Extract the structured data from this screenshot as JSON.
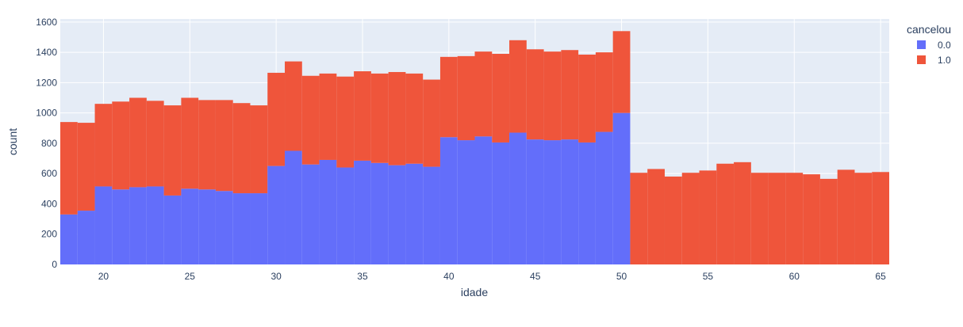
{
  "chart_data": {
    "type": "bar",
    "stacked": true,
    "x": [
      18,
      19,
      20,
      21,
      22,
      23,
      24,
      25,
      26,
      27,
      28,
      29,
      30,
      31,
      32,
      33,
      34,
      35,
      36,
      37,
      38,
      39,
      40,
      41,
      42,
      43,
      44,
      45,
      46,
      47,
      48,
      49,
      50,
      51,
      52,
      53,
      54,
      55,
      56,
      57,
      58,
      59,
      60,
      61,
      62,
      63,
      64,
      65
    ],
    "series": [
      {
        "name": "0.0",
        "color": "#636efa",
        "values": [
          330,
          355,
          515,
          495,
          510,
          515,
          455,
          500,
          495,
          485,
          470,
          470,
          650,
          750,
          660,
          690,
          640,
          685,
          670,
          655,
          665,
          645,
          840,
          820,
          845,
          805,
          870,
          825,
          820,
          825,
          805,
          875,
          1000,
          0,
          0,
          0,
          0,
          0,
          0,
          0,
          0,
          0,
          0,
          0,
          0,
          0,
          0,
          0
        ]
      },
      {
        "name": "1.0",
        "color": "#ef553b",
        "values": [
          610,
          580,
          545,
          580,
          590,
          565,
          595,
          600,
          590,
          600,
          595,
          580,
          615,
          590,
          585,
          570,
          600,
          590,
          590,
          615,
          595,
          575,
          530,
          555,
          560,
          585,
          610,
          595,
          585,
          590,
          580,
          525,
          540,
          605,
          630,
          580,
          605,
          620,
          665,
          675,
          605,
          605,
          605,
          595,
          565,
          625,
          605,
          610
        ]
      }
    ],
    "xlabel": "idade",
    "ylabel": "count",
    "xlim": [
      17.5,
      65.5
    ],
    "ylim": [
      0,
      1620
    ],
    "xticks": [
      20,
      25,
      30,
      35,
      40,
      45,
      50,
      55,
      60,
      65
    ],
    "yticks": [
      0,
      200,
      400,
      600,
      800,
      1000,
      1200,
      1400,
      1600
    ],
    "grid": true,
    "legend": {
      "title": "cancelou",
      "placement": "top-right"
    },
    "plot_bg": "#e5ecf6",
    "grid_color": "#ffffff"
  }
}
